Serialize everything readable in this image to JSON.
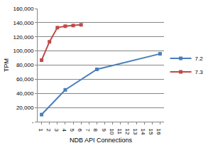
{
  "chart_data": {
    "type": "line",
    "x_label": "NDB API Connections",
    "y_label": "TPM",
    "xlim": [
      0.5,
      16.5
    ],
    "xticks": [
      1,
      2,
      3,
      4,
      5,
      6,
      7,
      8,
      9,
      10,
      11,
      12,
      13,
      14,
      15,
      16
    ],
    "ylim": [
      0,
      160000
    ],
    "yticks": [
      {
        "value": 0,
        "label": "-"
      },
      {
        "value": 20000,
        "label": "20,000"
      },
      {
        "value": 40000,
        "label": "40,000"
      },
      {
        "value": 60000,
        "label": "60,000"
      },
      {
        "value": 80000,
        "label": "80,000"
      },
      {
        "value": 100000,
        "label": "100,000"
      },
      {
        "value": 120000,
        "label": "120,000"
      },
      {
        "value": 140000,
        "label": "140,000"
      },
      {
        "value": 160000,
        "label": "160,000"
      }
    ],
    "grid": true,
    "legend": "right",
    "series": [
      {
        "name": "7.2",
        "color": "#4a7ebb",
        "marker": "square",
        "x": [
          1,
          4,
          8,
          16
        ],
        "values": [
          10000,
          45000,
          74000,
          96000
        ]
      },
      {
        "name": "7.3",
        "color": "#be4b48",
        "marker": "square",
        "x": [
          1,
          2,
          3,
          4,
          5,
          6
        ],
        "values": [
          87000,
          113000,
          133000,
          135000,
          136000,
          137000
        ]
      }
    ]
  }
}
